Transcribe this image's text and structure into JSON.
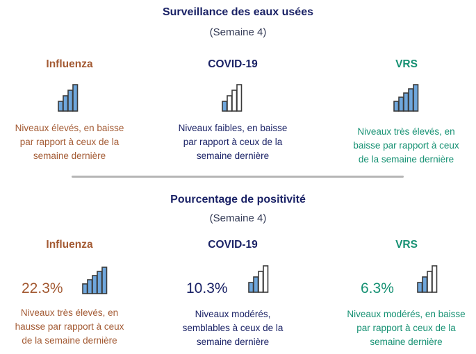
{
  "colors": {
    "influenza": "#a35a33",
    "covid": "#1a2266",
    "vrs": "#169173",
    "bar_fill": "#6fa7dd",
    "bar_empty": "#ffffff",
    "bar_stroke": "#3a3a3a"
  },
  "wastewater": {
    "title": "Surveillance des eaux usées",
    "subtitle": "(Semaine 4)",
    "columns": [
      {
        "name": "Influenza",
        "level": 4,
        "description": [
          "Niveaux élevés, en baisse",
          "par rapport à ceux de la",
          "semaine dernière"
        ]
      },
      {
        "name": "COVID-19",
        "level": 1,
        "description": [
          "Niveaux faibles, en baisse",
          "par rapport à ceux de la",
          "semaine dernière"
        ]
      },
      {
        "name": "VRS",
        "level": 5,
        "description": [
          "Niveaux très élevés, en",
          "baisse par rapport à ceux",
          "de la semaine dernière"
        ]
      }
    ]
  },
  "positivity": {
    "title": "Pourcentage de positivité",
    "subtitle": "(Semaine 4)",
    "columns": [
      {
        "name": "Influenza",
        "value": "22.3%",
        "level": 5,
        "description": [
          "Niveaux très élevés, en",
          "hausse par rapport à ceux",
          "de la semaine dernière"
        ]
      },
      {
        "name": "COVID-19",
        "value": "10.3%",
        "level": 2,
        "description": [
          "Niveaux modérés,",
          "semblables à ceux de la",
          "semaine dernière"
        ]
      },
      {
        "name": "VRS",
        "value": "6.3%",
        "level": 2,
        "description": [
          "Niveaux modérés, en baisse",
          "par rapport à ceux de la",
          "semaine dernière"
        ]
      }
    ]
  }
}
